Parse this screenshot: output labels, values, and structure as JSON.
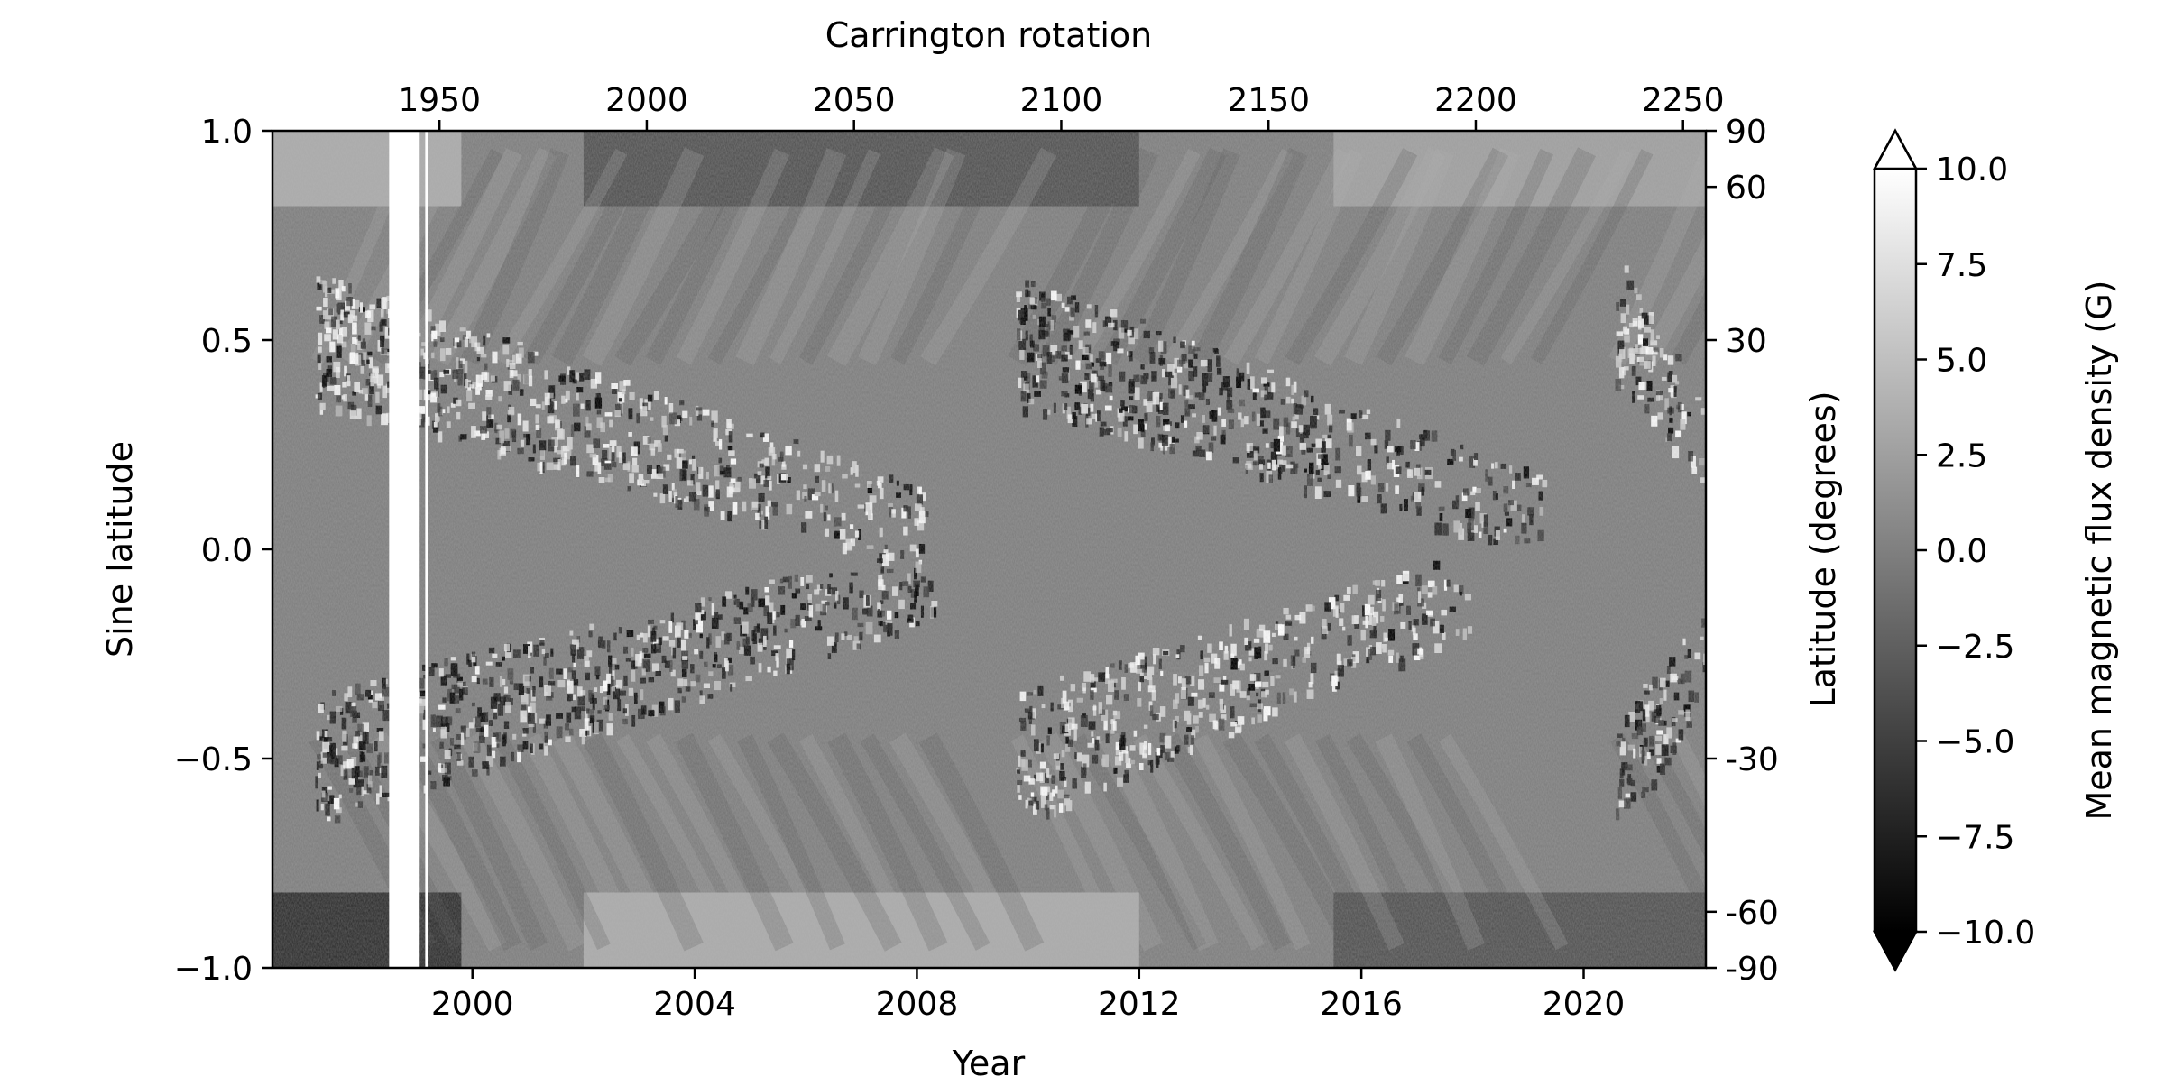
{
  "chart_data": {
    "type": "heatmap",
    "title": "",
    "xlabel": "Year",
    "ylabel": "Sine latitude",
    "top_xlabel": "Carrington rotation",
    "right_ylabel": "Latitude (degrees)",
    "xlim": [
      1996.4,
      2022.2
    ],
    "ylim": [
      -1.0,
      1.0
    ],
    "x_ticks": [
      2000,
      2004,
      2008,
      2012,
      2016,
      2020
    ],
    "x_tick_labels": [
      "2000",
      "2004",
      "2008",
      "2012",
      "2016",
      "2020"
    ],
    "y_ticks": [
      -1.0,
      -0.5,
      0.0,
      0.5,
      1.0
    ],
    "y_tick_labels": [
      "−1.0",
      "−0.5",
      "0.0",
      "0.5",
      "1.0"
    ],
    "top_axis": {
      "rotation_at_xmin": 1909.7,
      "rotation_at_xmax": 2255.5,
      "ticks": [
        1950,
        2000,
        2050,
        2100,
        2150,
        2200,
        2250
      ],
      "tick_labels": [
        "1950",
        "2000",
        "2050",
        "2100",
        "2150",
        "2200",
        "2250"
      ]
    },
    "right_axis": {
      "ticks_degrees": [
        90,
        60,
        30,
        -30,
        -60,
        -90
      ],
      "tick_labels": [
        "90",
        "60",
        "30",
        "-30",
        "-60",
        "-90"
      ]
    },
    "colorbar": {
      "label": "Mean magnetic flux density (G)",
      "vmin": -10.0,
      "vmax": 10.0,
      "extend": "both",
      "colormap": "gray",
      "ticks": [
        -10.0,
        -7.5,
        -5.0,
        -2.5,
        0.0,
        2.5,
        5.0,
        7.5,
        10.0
      ],
      "tick_labels": [
        "−10.0",
        "−7.5",
        "−5.0",
        "−2.5",
        "0.0",
        "2.5",
        "5.0",
        "7.5",
        "10.0"
      ]
    },
    "data_gaps_years": [
      [
        1998.5,
        1999.05
      ],
      [
        1999.15,
        1999.2
      ]
    ],
    "activity_bands": [
      {
        "cycle": 23,
        "hemisphere": "north",
        "years": [
          1997.2,
          2008.2
        ],
        "sine_lat_start": 0.5,
        "sine_lat_end": 0.05,
        "leading_sign": 1
      },
      {
        "cycle": 23,
        "hemisphere": "south",
        "years": [
          1997.2,
          2008.3
        ],
        "sine_lat_start": -0.5,
        "sine_lat_end": -0.08,
        "leading_sign": -1
      },
      {
        "cycle": 24,
        "hemisphere": "north",
        "years": [
          2009.8,
          2019.3
        ],
        "sine_lat_start": 0.5,
        "sine_lat_end": 0.08,
        "leading_sign": -1
      },
      {
        "cycle": 24,
        "hemisphere": "south",
        "years": [
          2009.8,
          2018.0
        ],
        "sine_lat_start": -0.5,
        "sine_lat_end": -0.1,
        "leading_sign": 1
      },
      {
        "cycle": 25,
        "hemisphere": "north",
        "years": [
          2020.6,
          2022.2
        ],
        "sine_lat_start": 0.55,
        "sine_lat_end": 0.25,
        "leading_sign": 1
      },
      {
        "cycle": 25,
        "hemisphere": "south",
        "years": [
          2020.6,
          2022.2
        ],
        "sine_lat_start": -0.55,
        "sine_lat_end": -0.25,
        "leading_sign": -1
      }
    ],
    "polar_fields_gauss": [
      {
        "years": [
          1996.4,
          1999.8
        ],
        "north": 4,
        "south": -7
      },
      {
        "years": [
          2000.0,
          2001.5
        ],
        "north": 0,
        "south": 0
      },
      {
        "years": [
          2002.0,
          2012.0
        ],
        "north": -4,
        "south": 4
      },
      {
        "years": [
          2013.0,
          2015.0
        ],
        "north": 0,
        "south": 0
      },
      {
        "years": [
          2015.5,
          2022.2
        ],
        "north": 3,
        "south": -4
      }
    ]
  }
}
